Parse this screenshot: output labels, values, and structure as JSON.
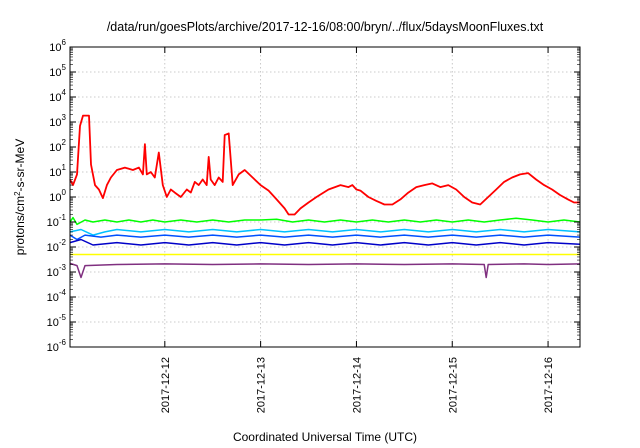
{
  "chart_data": {
    "type": "line",
    "title": "/data/run/goesPlots/archive/2017-12-16/08:00/bryn/../flux/5daysMoonFluxes.txt",
    "xlabel": "Coordinated Universal Time (UTC)",
    "ylabel": "protons/cm²-s-sr-MeV",
    "y_scale": "log",
    "ylim_exp": [
      -6,
      6
    ],
    "y_tick_exponents": [
      -6,
      -5,
      -4,
      -3,
      -2,
      -1,
      0,
      1,
      2,
      3,
      4,
      5,
      6
    ],
    "xlim": [
      "2017-12-11T00:15",
      "2017-12-16T08:00"
    ],
    "x_tick_labels": [
      "2017-12-12",
      "2017-12-13",
      "2017-12-14",
      "2017-12-15",
      "2017-12-16"
    ],
    "x_tick_positions": [
      "2017-12-12T00:00",
      "2017-12-13T00:00",
      "2017-12-14T00:00",
      "2017-12-15T00:00",
      "2017-12-16T00:00"
    ],
    "grid": true,
    "series": [
      {
        "color": "#ff0000",
        "points": [
          [
            "2017-12-11T00:15",
            5
          ],
          [
            "2017-12-11T01:00",
            3
          ],
          [
            "2017-12-11T02:00",
            8
          ],
          [
            "2017-12-11T02:45",
            700
          ],
          [
            "2017-12-11T03:30",
            1800
          ],
          [
            "2017-12-11T05:00",
            1800
          ],
          [
            "2017-12-11T05:30",
            20
          ],
          [
            "2017-12-11T06:30",
            3
          ],
          [
            "2017-12-11T07:30",
            2
          ],
          [
            "2017-12-11T08:30",
            0.9
          ],
          [
            "2017-12-11T09:30",
            3
          ],
          [
            "2017-12-11T10:30",
            6
          ],
          [
            "2017-12-11T12:00",
            12
          ],
          [
            "2017-12-11T14:00",
            15
          ],
          [
            "2017-12-11T16:00",
            12
          ],
          [
            "2017-12-11T17:30",
            15
          ],
          [
            "2017-12-11T18:30",
            8
          ],
          [
            "2017-12-11T19:00",
            130
          ],
          [
            "2017-12-11T19:30",
            8
          ],
          [
            "2017-12-11T20:30",
            10
          ],
          [
            "2017-12-11T21:30",
            6
          ],
          [
            "2017-12-11T22:30",
            60
          ],
          [
            "2017-12-11T23:30",
            3
          ],
          [
            "2017-12-12T00:30",
            1
          ],
          [
            "2017-12-12T01:30",
            2
          ],
          [
            "2017-12-12T02:30",
            1.5
          ],
          [
            "2017-12-12T04:00",
            1
          ],
          [
            "2017-12-12T05:30",
            2
          ],
          [
            "2017-12-12T06:30",
            1.5
          ],
          [
            "2017-12-12T07:30",
            4
          ],
          [
            "2017-12-12T08:30",
            3
          ],
          [
            "2017-12-12T09:30",
            5
          ],
          [
            "2017-12-12T10:30",
            3
          ],
          [
            "2017-12-12T11:00",
            40
          ],
          [
            "2017-12-12T11:30",
            5
          ],
          [
            "2017-12-12T12:30",
            3
          ],
          [
            "2017-12-12T13:30",
            6
          ],
          [
            "2017-12-12T14:30",
            4
          ],
          [
            "2017-12-12T15:00",
            300
          ],
          [
            "2017-12-12T16:00",
            350
          ],
          [
            "2017-12-12T17:00",
            3
          ],
          [
            "2017-12-12T18:30",
            8
          ],
          [
            "2017-12-12T20:00",
            12
          ],
          [
            "2017-12-12T22:00",
            6
          ],
          [
            "2017-12-13T00:00",
            3
          ],
          [
            "2017-12-13T02:00",
            1.8
          ],
          [
            "2017-12-13T04:00",
            0.8
          ],
          [
            "2017-12-13T06:00",
            0.35
          ],
          [
            "2017-12-13T07:00",
            0.2
          ],
          [
            "2017-12-13T08:30",
            0.2
          ],
          [
            "2017-12-13T10:00",
            0.35
          ],
          [
            "2017-12-13T12:00",
            0.6
          ],
          [
            "2017-12-13T14:00",
            1
          ],
          [
            "2017-12-13T17:00",
            2
          ],
          [
            "2017-12-13T20:00",
            3
          ],
          [
            "2017-12-13T22:00",
            2.5
          ],
          [
            "2017-12-13T23:00",
            3
          ],
          [
            "2017-12-14T00:00",
            2
          ],
          [
            "2017-12-14T01:00",
            1.8
          ],
          [
            "2017-12-14T03:00",
            1
          ],
          [
            "2017-12-14T05:00",
            0.7
          ],
          [
            "2017-12-14T07:00",
            0.5
          ],
          [
            "2017-12-14T09:00",
            0.5
          ],
          [
            "2017-12-14T11:00",
            0.8
          ],
          [
            "2017-12-14T13:00",
            1.5
          ],
          [
            "2017-12-14T15:00",
            2.5
          ],
          [
            "2017-12-14T17:00",
            3
          ],
          [
            "2017-12-14T19:00",
            3.5
          ],
          [
            "2017-12-14T21:00",
            2.5
          ],
          [
            "2017-12-14T23:00",
            3
          ],
          [
            "2017-12-15T01:00",
            2
          ],
          [
            "2017-12-15T03:00",
            1
          ],
          [
            "2017-12-15T05:00",
            0.6
          ],
          [
            "2017-12-15T07:00",
            0.5
          ],
          [
            "2017-12-15T09:00",
            1
          ],
          [
            "2017-12-15T11:00",
            2
          ],
          [
            "2017-12-15T13:00",
            4
          ],
          [
            "2017-12-15T15:00",
            6
          ],
          [
            "2017-12-15T17:00",
            8
          ],
          [
            "2017-12-15T19:00",
            9
          ],
          [
            "2017-12-15T21:00",
            5
          ],
          [
            "2017-12-15T23:00",
            3
          ],
          [
            "2017-12-16T01:00",
            2
          ],
          [
            "2017-12-16T03:00",
            1.2
          ],
          [
            "2017-12-16T05:00",
            0.8
          ],
          [
            "2017-12-16T06:30",
            0.6
          ],
          [
            "2017-12-16T08:00",
            0.6
          ]
        ]
      },
      {
        "color": "#00ff00",
        "points": [
          [
            "2017-12-11T00:15",
            0.1
          ],
          [
            "2017-12-11T01:00",
            0.15
          ],
          [
            "2017-12-11T02:00",
            0.08
          ],
          [
            "2017-12-11T04:00",
            0.12
          ],
          [
            "2017-12-11T06:00",
            0.1
          ],
          [
            "2017-12-11T09:00",
            0.12
          ],
          [
            "2017-12-11T12:00",
            0.1
          ],
          [
            "2017-12-11T15:00",
            0.12
          ],
          [
            "2017-12-11T18:00",
            0.1
          ],
          [
            "2017-12-11T21:00",
            0.12
          ],
          [
            "2017-12-12T00:00",
            0.1
          ],
          [
            "2017-12-12T04:00",
            0.12
          ],
          [
            "2017-12-12T08:00",
            0.1
          ],
          [
            "2017-12-12T12:00",
            0.12
          ],
          [
            "2017-12-12T16:00",
            0.1
          ],
          [
            "2017-12-12T20:00",
            0.12
          ],
          [
            "2017-12-13T00:00",
            0.12
          ],
          [
            "2017-12-13T04:00",
            0.13
          ],
          [
            "2017-12-13T08:00",
            0.1
          ],
          [
            "2017-12-13T12:00",
            0.12
          ],
          [
            "2017-12-13T16:00",
            0.1
          ],
          [
            "2017-12-13T20:00",
            0.12
          ],
          [
            "2017-12-14T00:00",
            0.1
          ],
          [
            "2017-12-14T04:00",
            0.12
          ],
          [
            "2017-12-14T08:00",
            0.1
          ],
          [
            "2017-12-14T12:00",
            0.12
          ],
          [
            "2017-12-14T16:00",
            0.1
          ],
          [
            "2017-12-14T20:00",
            0.12
          ],
          [
            "2017-12-15T00:00",
            0.1
          ],
          [
            "2017-12-15T04:00",
            0.12
          ],
          [
            "2017-12-15T08:00",
            0.1
          ],
          [
            "2017-12-15T12:00",
            0.12
          ],
          [
            "2017-12-15T16:00",
            0.14
          ],
          [
            "2017-12-15T20:00",
            0.12
          ],
          [
            "2017-12-16T00:00",
            0.1
          ],
          [
            "2017-12-16T04:00",
            0.12
          ],
          [
            "2017-12-16T08:00",
            0.1
          ]
        ]
      },
      {
        "color": "#00c0ff",
        "points": [
          [
            "2017-12-11T00:15",
            0.04
          ],
          [
            "2017-12-11T03:00",
            0.05
          ],
          [
            "2017-12-11T06:00",
            0.03
          ],
          [
            "2017-12-11T09:00",
            0.04
          ],
          [
            "2017-12-11T12:00",
            0.05
          ],
          [
            "2017-12-11T18:00",
            0.04
          ],
          [
            "2017-12-12T00:00",
            0.05
          ],
          [
            "2017-12-12T06:00",
            0.04
          ],
          [
            "2017-12-12T12:00",
            0.05
          ],
          [
            "2017-12-12T18:00",
            0.04
          ],
          [
            "2017-12-13T00:00",
            0.05
          ],
          [
            "2017-12-13T06:00",
            0.04
          ],
          [
            "2017-12-13T12:00",
            0.05
          ],
          [
            "2017-12-13T18:00",
            0.04
          ],
          [
            "2017-12-14T00:00",
            0.05
          ],
          [
            "2017-12-14T06:00",
            0.04
          ],
          [
            "2017-12-14T12:00",
            0.05
          ],
          [
            "2017-12-14T18:00",
            0.04
          ],
          [
            "2017-12-15T00:00",
            0.05
          ],
          [
            "2017-12-15T06:00",
            0.04
          ],
          [
            "2017-12-15T12:00",
            0.05
          ],
          [
            "2017-12-15T18:00",
            0.04
          ],
          [
            "2017-12-16T00:00",
            0.05
          ],
          [
            "2017-12-16T08:00",
            0.04
          ]
        ]
      },
      {
        "color": "#0050ff",
        "points": [
          [
            "2017-12-11T00:15",
            0.03
          ],
          [
            "2017-12-11T02:00",
            0.02
          ],
          [
            "2017-12-11T04:00",
            0.03
          ],
          [
            "2017-12-11T08:00",
            0.025
          ],
          [
            "2017-12-11T12:00",
            0.03
          ],
          [
            "2017-12-11T18:00",
            0.025
          ],
          [
            "2017-12-12T00:00",
            0.03
          ],
          [
            "2017-12-12T06:00",
            0.025
          ],
          [
            "2017-12-12T12:00",
            0.03
          ],
          [
            "2017-12-12T18:00",
            0.025
          ],
          [
            "2017-12-13T00:00",
            0.03
          ],
          [
            "2017-12-13T06:00",
            0.025
          ],
          [
            "2017-12-13T12:00",
            0.03
          ],
          [
            "2017-12-13T18:00",
            0.025
          ],
          [
            "2017-12-14T00:00",
            0.03
          ],
          [
            "2017-12-14T06:00",
            0.025
          ],
          [
            "2017-12-14T12:00",
            0.03
          ],
          [
            "2017-12-14T18:00",
            0.025
          ],
          [
            "2017-12-15T00:00",
            0.03
          ],
          [
            "2017-12-15T06:00",
            0.025
          ],
          [
            "2017-12-15T12:00",
            0.03
          ],
          [
            "2017-12-15T18:00",
            0.025
          ],
          [
            "2017-12-16T00:00",
            0.03
          ],
          [
            "2017-12-16T08:00",
            0.025
          ]
        ]
      },
      {
        "color": "#0000c8",
        "points": [
          [
            "2017-12-11T00:15",
            0.015
          ],
          [
            "2017-12-11T03:00",
            0.02
          ],
          [
            "2017-12-11T06:00",
            0.012
          ],
          [
            "2017-12-11T12:00",
            0.015
          ],
          [
            "2017-12-11T18:00",
            0.012
          ],
          [
            "2017-12-12T00:00",
            0.015
          ],
          [
            "2017-12-12T06:00",
            0.012
          ],
          [
            "2017-12-12T12:00",
            0.015
          ],
          [
            "2017-12-12T18:00",
            0.012
          ],
          [
            "2017-12-13T00:00",
            0.015
          ],
          [
            "2017-12-13T06:00",
            0.012
          ],
          [
            "2017-12-13T12:00",
            0.015
          ],
          [
            "2017-12-13T18:00",
            0.012
          ],
          [
            "2017-12-14T00:00",
            0.015
          ],
          [
            "2017-12-14T06:00",
            0.012
          ],
          [
            "2017-12-14T12:00",
            0.015
          ],
          [
            "2017-12-14T18:00",
            0.012
          ],
          [
            "2017-12-15T00:00",
            0.015
          ],
          [
            "2017-12-15T06:00",
            0.012
          ],
          [
            "2017-12-15T12:00",
            0.015
          ],
          [
            "2017-12-15T18:00",
            0.012
          ],
          [
            "2017-12-16T00:00",
            0.015
          ],
          [
            "2017-12-16T08:00",
            0.013
          ]
        ]
      },
      {
        "color": "#ffff00",
        "points": [
          [
            "2017-12-11T00:15",
            0.005
          ],
          [
            "2017-12-12T00:00",
            0.005
          ],
          [
            "2017-12-13T00:00",
            0.005
          ],
          [
            "2017-12-14T00:00",
            0.005
          ],
          [
            "2017-12-15T00:00",
            0.005
          ],
          [
            "2017-12-16T00:00",
            0.005
          ],
          [
            "2017-12-16T08:00",
            0.005
          ]
        ]
      },
      {
        "color": "#803080",
        "points": [
          [
            "2017-12-11T00:15",
            0.0022
          ],
          [
            "2017-12-11T02:00",
            0.0018
          ],
          [
            "2017-12-11T03:00",
            0.0006
          ],
          [
            "2017-12-11T04:00",
            0.0018
          ],
          [
            "2017-12-11T12:00",
            0.002
          ],
          [
            "2017-12-12T00:00",
            0.0021
          ],
          [
            "2017-12-12T12:00",
            0.002
          ],
          [
            "2017-12-13T00:00",
            0.0021
          ],
          [
            "2017-12-13T12:00",
            0.002
          ],
          [
            "2017-12-14T00:00",
            0.0021
          ],
          [
            "2017-12-14T12:00",
            0.002
          ],
          [
            "2017-12-15T00:00",
            0.0021
          ],
          [
            "2017-12-15T08:00",
            0.002
          ],
          [
            "2017-12-15T08:30",
            0.0006
          ],
          [
            "2017-12-15T09:00",
            0.002
          ],
          [
            "2017-12-15T18:00",
            0.0021
          ],
          [
            "2017-12-16T00:00",
            0.002
          ],
          [
            "2017-12-16T08:00",
            0.0021
          ]
        ]
      }
    ]
  }
}
